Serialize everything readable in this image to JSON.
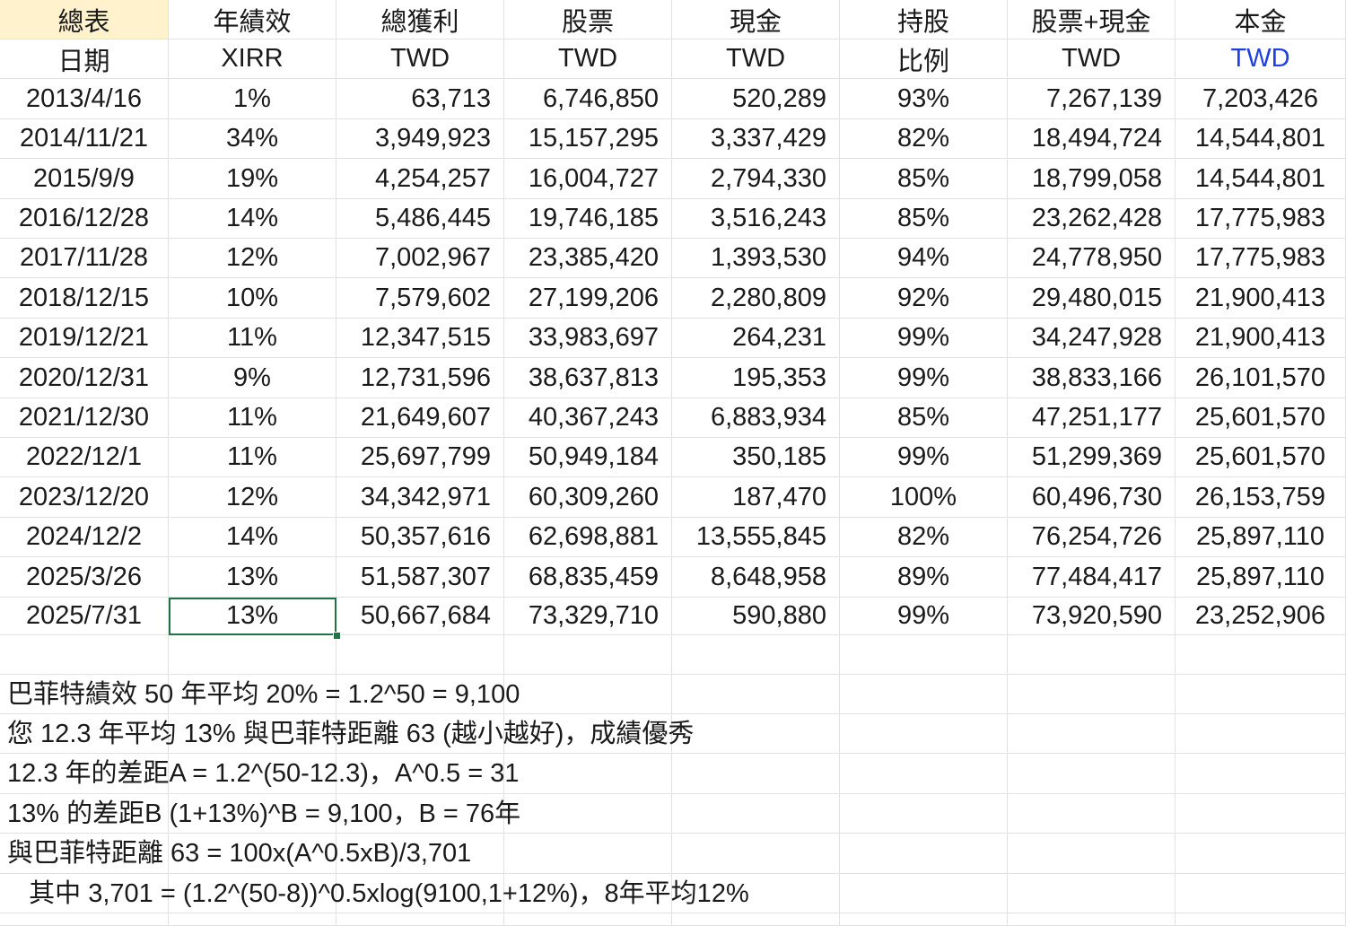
{
  "header_row1": [
    "總表",
    "年績效",
    "總獲利",
    "股票",
    "現金",
    "持股",
    "股票+現金",
    "本金"
  ],
  "header_row2": [
    "日期",
    "XIRR",
    "TWD",
    "TWD",
    "TWD",
    "比例",
    "TWD",
    "TWD"
  ],
  "rows": [
    [
      "2013/4/16",
      "1%",
      "63,713",
      "6,746,850",
      "520,289",
      "93%",
      "7,267,139",
      "7,203,426"
    ],
    [
      "2014/11/21",
      "34%",
      "3,949,923",
      "15,157,295",
      "3,337,429",
      "82%",
      "18,494,724",
      "14,544,801"
    ],
    [
      "2015/9/9",
      "19%",
      "4,254,257",
      "16,004,727",
      "2,794,330",
      "85%",
      "18,799,058",
      "14,544,801"
    ],
    [
      "2016/12/28",
      "14%",
      "5,486,445",
      "19,746,185",
      "3,516,243",
      "85%",
      "23,262,428",
      "17,775,983"
    ],
    [
      "2017/11/28",
      "12%",
      "7,002,967",
      "23,385,420",
      "1,393,530",
      "94%",
      "24,778,950",
      "17,775,983"
    ],
    [
      "2018/12/15",
      "10%",
      "7,579,602",
      "27,199,206",
      "2,280,809",
      "92%",
      "29,480,015",
      "21,900,413"
    ],
    [
      "2019/12/21",
      "11%",
      "12,347,515",
      "33,983,697",
      "264,231",
      "99%",
      "34,247,928",
      "21,900,413"
    ],
    [
      "2020/12/31",
      "9%",
      "12,731,596",
      "38,637,813",
      "195,353",
      "99%",
      "38,833,166",
      "26,101,570"
    ],
    [
      "2021/12/30",
      "11%",
      "21,649,607",
      "40,367,243",
      "6,883,934",
      "85%",
      "47,251,177",
      "25,601,570"
    ],
    [
      "2022/12/1",
      "11%",
      "25,697,799",
      "50,949,184",
      "350,185",
      "99%",
      "51,299,369",
      "25,601,570"
    ],
    [
      "2023/12/20",
      "12%",
      "34,342,971",
      "60,309,260",
      "187,470",
      "100%",
      "60,496,730",
      "26,153,759"
    ],
    [
      "2024/12/2",
      "14%",
      "50,357,616",
      "62,698,881",
      "13,555,845",
      "82%",
      "76,254,726",
      "25,897,110"
    ],
    [
      "2025/3/26",
      "13%",
      "51,587,307",
      "68,835,459",
      "8,648,958",
      "89%",
      "77,484,417",
      "25,897,110"
    ],
    [
      "2025/7/31",
      "13%",
      "50,667,684",
      "73,329,710",
      "590,880",
      "99%",
      "73,920,590",
      "23,252,906"
    ]
  ],
  "notes": [
    "巴菲特績效 50 年平均 20% = 1.2^50 = 9,100",
    "您 12.3 年平均 13% 與巴菲特距離 63 (越小越好)，成績優秀",
    "12.3 年的差距A = 1.2^(50-12.3)，A^0.5 = 31",
    "13% 的差距B (1+13%)^B = 9,100，B = 76年",
    "與巴菲特距離 63 = 100x(A^0.5xB)/3,701",
    "   其中 3,701 = (1.2^(50-8))^0.5xlog(9100,1+12%)，8年平均12%"
  ],
  "colors": {
    "header_highlight": "#fff2cc",
    "blue_text": "#1f3fe0",
    "selection": "#217346",
    "gridline": "#e1e1e1"
  },
  "selected_cell": "B16"
}
